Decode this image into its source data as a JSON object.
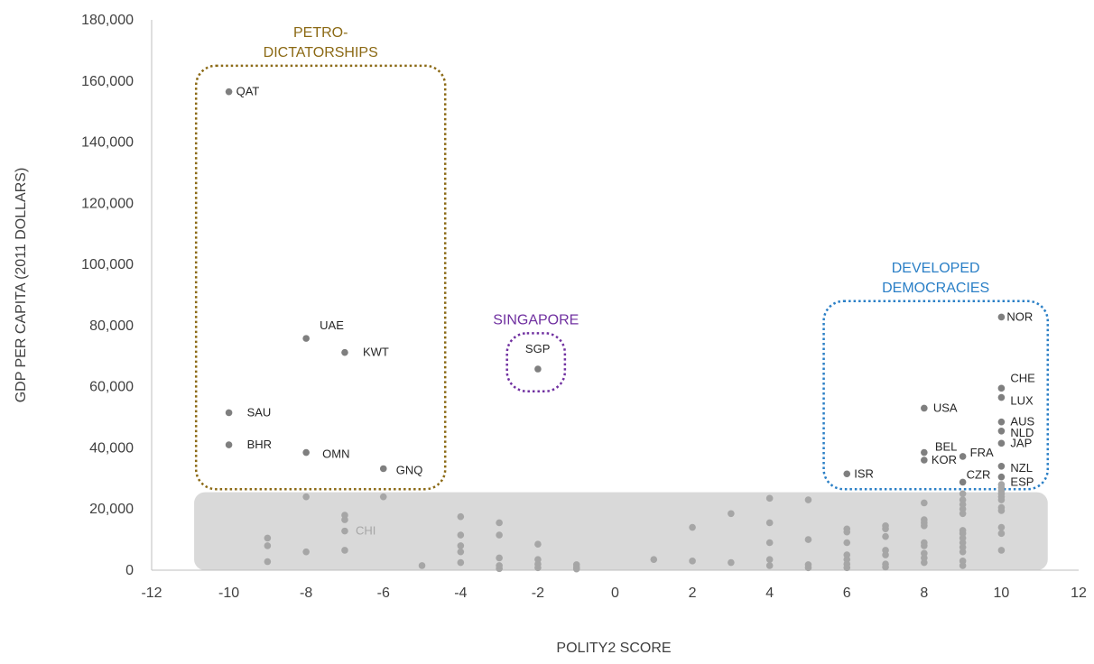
{
  "chart_data": {
    "type": "scatter",
    "xlabel": "POLITY2 SCORE",
    "ylabel": "GDP PER CAPITA (2011 DOLLARS)",
    "xlim": [
      -12,
      12
    ],
    "ylim": [
      0,
      180000
    ],
    "x_ticks": [
      -12,
      -10,
      -8,
      -6,
      -4,
      -2,
      0,
      2,
      4,
      6,
      8,
      10,
      12
    ],
    "y_ticks": [
      0,
      20000,
      40000,
      60000,
      80000,
      100000,
      120000,
      140000,
      160000,
      180000
    ],
    "x_tick_labels": [
      "-12",
      "-10",
      "-8",
      "-6",
      "-4",
      "-2",
      "0",
      "2",
      "4",
      "6",
      "8",
      "10",
      "12"
    ],
    "y_tick_labels": [
      "0",
      "20,000",
      "40,000",
      "60,000",
      "80,000",
      "100,000",
      "120,000",
      "140,000",
      "160,000",
      "180,000"
    ],
    "grid": false,
    "point_color": "#7f7f7f",
    "faded_point_color": "#a6a6a6",
    "points": [
      {
        "x": -10,
        "y": 156500,
        "label": "QAT"
      },
      {
        "x": -8,
        "y": 75800,
        "label": "UAE"
      },
      {
        "x": -7,
        "y": 71200,
        "label": "KWT"
      },
      {
        "x": -10,
        "y": 51500,
        "label": "SAU"
      },
      {
        "x": -10,
        "y": 41000,
        "label": "BHR"
      },
      {
        "x": -8,
        "y": 38500,
        "label": "OMN"
      },
      {
        "x": -6,
        "y": 33200,
        "label": "GNQ"
      },
      {
        "x": -2,
        "y": 65800,
        "label": "SGP"
      },
      {
        "x": 10,
        "y": 82800,
        "label": "NOR"
      },
      {
        "x": 10,
        "y": 59500,
        "label": "CHE"
      },
      {
        "x": 10,
        "y": 56500,
        "label": "LUX"
      },
      {
        "x": 8,
        "y": 53000,
        "label": "USA"
      },
      {
        "x": 10,
        "y": 48500,
        "label": "AUS"
      },
      {
        "x": 10,
        "y": 45500,
        "label": "NLD"
      },
      {
        "x": 8,
        "y": 38500,
        "label": "BEL"
      },
      {
        "x": 9,
        "y": 37200,
        "label": "FRA"
      },
      {
        "x": 10,
        "y": 41500,
        "label": "JAP"
      },
      {
        "x": 8,
        "y": 36000,
        "label": "KOR"
      },
      {
        "x": 10,
        "y": 34000,
        "label": "NZL"
      },
      {
        "x": 9,
        "y": 28800,
        "label": "CZR"
      },
      {
        "x": 10,
        "y": 30500,
        "label": "ESP"
      },
      {
        "x": 6,
        "y": 31500,
        "label": "ISR"
      },
      {
        "x": -7,
        "y": 12800,
        "label": "CHI"
      }
    ],
    "other_points": [
      [
        -9,
        10500
      ],
      [
        -9,
        8000
      ],
      [
        -9,
        2800
      ],
      [
        -8,
        24000
      ],
      [
        -8,
        6000
      ],
      [
        -7,
        18000
      ],
      [
        -7,
        16500
      ],
      [
        -7,
        6500
      ],
      [
        -6,
        24000
      ],
      [
        -5,
        1500
      ],
      [
        -4,
        17500
      ],
      [
        -4,
        11500
      ],
      [
        -4,
        8000
      ],
      [
        -4,
        6000
      ],
      [
        -4,
        2500
      ],
      [
        -3,
        15500
      ],
      [
        -3,
        11500
      ],
      [
        -3,
        4000
      ],
      [
        -3,
        1500
      ],
      [
        -3,
        500
      ],
      [
        -2,
        8500
      ],
      [
        -2,
        3500
      ],
      [
        -2,
        2000
      ],
      [
        -2,
        800
      ],
      [
        -1,
        1800
      ],
      [
        -1,
        900
      ],
      [
        -1,
        400
      ],
      [
        1,
        3500
      ],
      [
        2,
        14000
      ],
      [
        2,
        3000
      ],
      [
        3,
        18500
      ],
      [
        3,
        2500
      ],
      [
        4,
        23500
      ],
      [
        4,
        15500
      ],
      [
        4,
        9000
      ],
      [
        4,
        3500
      ],
      [
        4,
        1500
      ],
      [
        5,
        23000
      ],
      [
        5,
        10000
      ],
      [
        5,
        1800
      ],
      [
        5,
        800
      ],
      [
        6,
        13500
      ],
      [
        6,
        12500
      ],
      [
        6,
        9000
      ],
      [
        6,
        5000
      ],
      [
        6,
        3500
      ],
      [
        6,
        2000
      ],
      [
        6,
        800
      ],
      [
        7,
        14500
      ],
      [
        7,
        13500
      ],
      [
        7,
        11000
      ],
      [
        7,
        6500
      ],
      [
        7,
        5000
      ],
      [
        7,
        2000
      ],
      [
        7,
        1000
      ],
      [
        8,
        22000
      ],
      [
        8,
        16500
      ],
      [
        8,
        15500
      ],
      [
        8,
        14500
      ],
      [
        8,
        9000
      ],
      [
        8,
        8000
      ],
      [
        8,
        5500
      ],
      [
        8,
        4000
      ],
      [
        8,
        2500
      ],
      [
        9,
        25000
      ],
      [
        9,
        23000
      ],
      [
        9,
        21500
      ],
      [
        9,
        20000
      ],
      [
        9,
        18500
      ],
      [
        9,
        13000
      ],
      [
        9,
        12000
      ],
      [
        9,
        10500
      ],
      [
        9,
        9000
      ],
      [
        9,
        7500
      ],
      [
        9,
        6000
      ],
      [
        9,
        3000
      ],
      [
        9,
        1500
      ],
      [
        10,
        28000
      ],
      [
        10,
        27000
      ],
      [
        10,
        26000
      ],
      [
        10,
        25000
      ],
      [
        10,
        24000
      ],
      [
        10,
        23000
      ],
      [
        10,
        20500
      ],
      [
        10,
        19500
      ],
      [
        10,
        14000
      ],
      [
        10,
        12000
      ],
      [
        10,
        6500
      ]
    ],
    "annotations": [
      {
        "lines": [
          "PETRO-",
          "DICTATORSHIPS"
        ],
        "color": "#8b6914",
        "x_range": [
          -10.85,
          -4.4
        ],
        "y_range": [
          26500,
          165000
        ]
      },
      {
        "lines": [
          "SINGAPORE"
        ],
        "color": "#7030a0",
        "x_range": [
          -2.8,
          -1.3
        ],
        "y_range": [
          58500,
          77500
        ]
      },
      {
        "lines": [
          "DEVELOPED",
          "DEMOCRACIES"
        ],
        "color": "#2a7fc6",
        "x_range": [
          5.4,
          11.2
        ],
        "y_range": [
          26500,
          88000
        ]
      }
    ],
    "shaded_band": {
      "color": "#d9d9d9",
      "x_range": [
        -10.9,
        11.2
      ],
      "y_range": [
        0,
        25500
      ]
    }
  }
}
